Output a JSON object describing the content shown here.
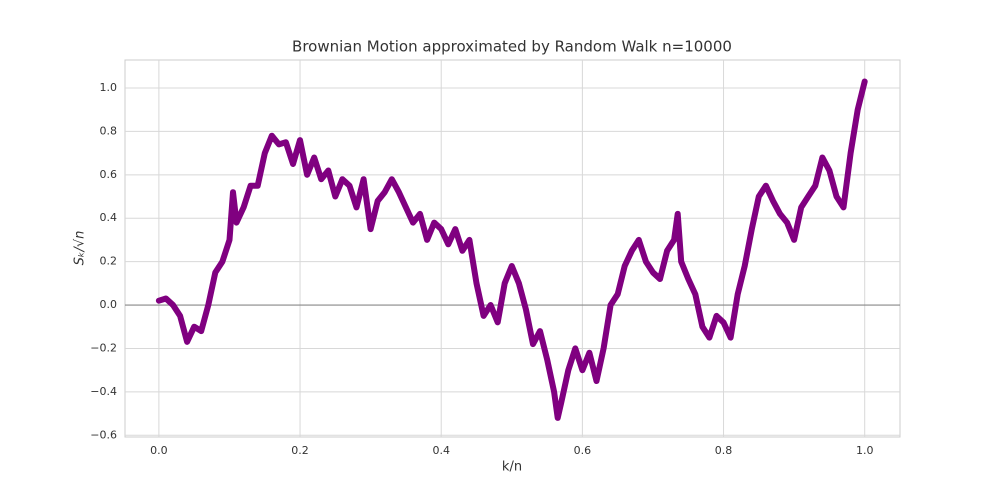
{
  "chart_data": {
    "type": "line",
    "title": "Brownian Motion approximated by Random Walk n=10000",
    "x_label": "k/n",
    "y_label": "Sₖ/√n",
    "x": [
      0,
      0.01,
      0.02,
      0.03,
      0.04,
      0.05,
      0.06,
      0.07,
      0.08,
      0.09,
      0.1,
      0.105,
      0.11,
      0.12,
      0.13,
      0.14,
      0.15,
      0.16,
      0.17,
      0.18,
      0.19,
      0.2,
      0.21,
      0.22,
      0.23,
      0.24,
      0.25,
      0.26,
      0.27,
      0.28,
      0.29,
      0.3,
      0.31,
      0.32,
      0.33,
      0.34,
      0.35,
      0.36,
      0.37,
      0.38,
      0.39,
      0.4,
      0.41,
      0.42,
      0.43,
      0.44,
      0.45,
      0.46,
      0.47,
      0.48,
      0.49,
      0.5,
      0.51,
      0.52,
      0.53,
      0.54,
      0.55,
      0.56,
      0.565,
      0.57,
      0.58,
      0.59,
      0.6,
      0.61,
      0.62,
      0.63,
      0.64,
      0.65,
      0.66,
      0.67,
      0.68,
      0.69,
      0.7,
      0.71,
      0.72,
      0.73,
      0.735,
      0.74,
      0.75,
      0.76,
      0.77,
      0.78,
      0.79,
      0.8,
      0.81,
      0.82,
      0.83,
      0.84,
      0.85,
      0.86,
      0.87,
      0.88,
      0.89,
      0.9,
      0.91,
      0.92,
      0.93,
      0.94,
      0.95,
      0.96,
      0.97,
      0.98,
      0.99,
      1.0
    ],
    "series": [
      {
        "color": "#800080",
        "values": [
          0.02,
          0.03,
          0.0,
          -0.05,
          -0.17,
          -0.1,
          -0.12,
          0.0,
          0.15,
          0.2,
          0.3,
          0.52,
          0.38,
          0.45,
          0.55,
          0.55,
          0.7,
          0.78,
          0.74,
          0.75,
          0.65,
          0.76,
          0.6,
          0.68,
          0.58,
          0.62,
          0.5,
          0.58,
          0.55,
          0.45,
          0.58,
          0.35,
          0.48,
          0.52,
          0.58,
          0.52,
          0.45,
          0.38,
          0.42,
          0.3,
          0.38,
          0.35,
          0.28,
          0.35,
          0.25,
          0.3,
          0.1,
          -0.05,
          0.0,
          -0.08,
          0.1,
          0.18,
          0.1,
          -0.02,
          -0.18,
          -0.12,
          -0.25,
          -0.4,
          -0.52,
          -0.45,
          -0.3,
          -0.2,
          -0.3,
          -0.22,
          -0.35,
          -0.2,
          0.0,
          0.05,
          0.18,
          0.25,
          0.3,
          0.2,
          0.15,
          0.12,
          0.25,
          0.3,
          0.42,
          0.2,
          0.12,
          0.05,
          -0.1,
          -0.15,
          -0.05,
          -0.08,
          -0.15,
          0.05,
          0.18,
          0.35,
          0.5,
          0.55,
          0.48,
          0.42,
          0.38,
          0.3,
          0.45,
          0.5,
          0.55,
          0.68,
          0.62,
          0.5,
          0.45,
          0.7,
          0.9,
          1.03
        ]
      }
    ],
    "xlim": [
      -0.048,
      1.05
    ],
    "ylim": [
      -0.608,
      1.129
    ],
    "xticks": [
      {
        "value": 0,
        "label": "0.0"
      },
      0.2,
      0.4,
      0.6,
      0.8,
      {
        "value": 1,
        "label": "1.0"
      }
    ],
    "yticks": [
      {
        "value": -0.6,
        "label": "−0.6"
      },
      {
        "value": -0.4,
        "label": "−0.4"
      },
      {
        "value": -0.2,
        "label": "−0.2"
      },
      {
        "value": 0,
        "label": "0.0"
      },
      0.2,
      0.4,
      0.6,
      0.8,
      {
        "value": 1,
        "label": "1.0"
      }
    ],
    "grid": true,
    "zero_line": true
  }
}
